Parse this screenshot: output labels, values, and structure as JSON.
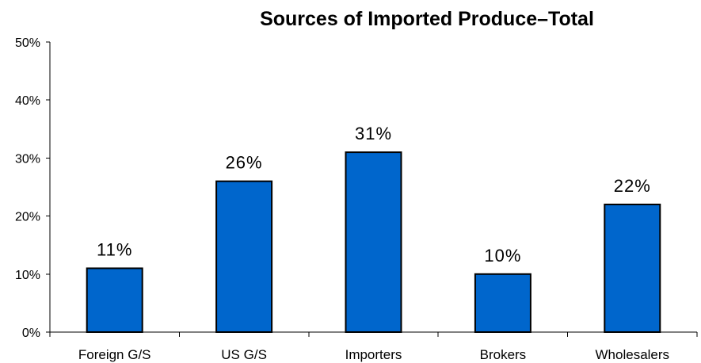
{
  "chart_data": {
    "type": "bar",
    "title": "Sources of Imported Produce–Total",
    "categories": [
      "Foreign G/S",
      "US G/S",
      "Importers",
      "Brokers",
      "Wholesalers"
    ],
    "values": [
      11,
      26,
      31,
      10,
      22
    ],
    "data_labels": [
      "11%",
      "26%",
      "31%",
      "10%",
      "22%"
    ],
    "y_ticks": [
      0,
      10,
      20,
      30,
      40,
      50
    ],
    "y_tick_labels": [
      "0%",
      "10%",
      "20%",
      "30%",
      "40%",
      "50%"
    ],
    "ylim": [
      0,
      50
    ],
    "xlabel": "",
    "ylabel": "",
    "grid": false,
    "legend": "none",
    "bar_color": "#0066CC",
    "bar_outline_color": "#000000"
  }
}
